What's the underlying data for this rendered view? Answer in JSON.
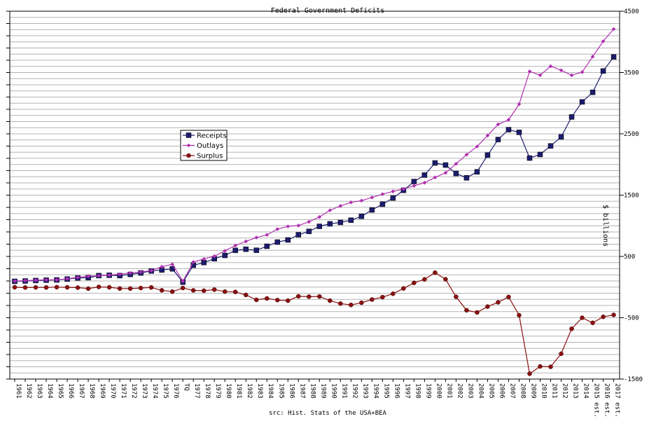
{
  "chart_data": {
    "type": "line",
    "title": "Federal Government Deficits",
    "source": "src: Hist. Stats of the USA+BEA",
    "ylabel": "$ billions",
    "ylim": [
      -1500,
      4500
    ],
    "yticks": [
      -1500,
      -500,
      500,
      1500,
      2500,
      3500,
      4500
    ],
    "grid": true,
    "legend_position": "center-left",
    "categories": [
      "1961",
      "1962",
      "1963",
      "1964",
      "1965",
      "1966",
      "1967",
      "1968",
      "1969",
      "1970",
      "1971",
      "1972",
      "1973",
      "1974",
      "1975",
      "1976",
      "TQ",
      "1977",
      "1978",
      "1979",
      "1980",
      "1981",
      "1982",
      "1983",
      "1984",
      "1985",
      "1986",
      "1987",
      "1988",
      "1989",
      "1990",
      "1991",
      "1992",
      "1993",
      "1994",
      "1995",
      "1996",
      "1997",
      "1998",
      "1999",
      "2000",
      "2001",
      "2002",
      "2003",
      "2004",
      "2005",
      "2006",
      "2007",
      "2008",
      "2009",
      "2010",
      "2011",
      "2012",
      "2013",
      "2014",
      "2015 est.",
      "2016 est.",
      "2017 est."
    ],
    "series": [
      {
        "name": "Receipts",
        "color": "#1c1c6e",
        "marker": "square",
        "values": [
          94,
          100,
          107,
          113,
          117,
          131,
          149,
          153,
          187,
          193,
          187,
          207,
          231,
          263,
          279,
          298,
          81,
          356,
          400,
          463,
          517,
          599,
          618,
          601,
          666,
          734,
          769,
          854,
          909,
          991,
          1032,
          1055,
          1091,
          1154,
          1259,
          1352,
          1453,
          1579,
          1722,
          1827,
          2025,
          1991,
          1853,
          1782,
          1880,
          2153,
          2407,
          2568,
          2524,
          2105,
          2163,
          2303,
          2450,
          2775,
          3021,
          3176,
          3525,
          3755
        ]
      },
      {
        "name": "Outlays",
        "color": "#b030b0",
        "marker": "diamond",
        "values": [
          98,
          106,
          112,
          118,
          118,
          135,
          158,
          178,
          184,
          196,
          210,
          231,
          246,
          269,
          332,
          372,
          96,
          409,
          459,
          504,
          591,
          678,
          746,
          808,
          852,
          946,
          990,
          1004,
          1065,
          1144,
          1253,
          1324,
          1382,
          1410,
          1462,
          1516,
          1561,
          1601,
          1652,
          1702,
          1789,
          1863,
          2011,
          2160,
          2293,
          2472,
          2655,
          2729,
          2983,
          3518,
          3457,
          3603,
          3537,
          3455,
          3506,
          3759,
          4010,
          4209
        ]
      },
      {
        "name": "Surplus",
        "color": "#8b1010",
        "marker": "circle",
        "values": [
          -3,
          -7,
          -5,
          -6,
          -1,
          -4,
          -9,
          -25,
          3,
          -3,
          -23,
          -24,
          -15,
          -6,
          -53,
          -74,
          -15,
          -54,
          -59,
          -41,
          -74,
          -79,
          -128,
          -208,
          -185,
          -212,
          -221,
          -150,
          -156,
          -153,
          -221,
          -269,
          -291,
          -255,
          -203,
          -164,
          -108,
          -22,
          69,
          126,
          236,
          128,
          -158,
          -378,
          -413,
          -318,
          -248,
          -161,
          -459,
          -1413,
          -1294,
          -1300,
          -1087,
          -680,
          -500,
          -583,
          -485,
          -454
        ]
      }
    ]
  }
}
